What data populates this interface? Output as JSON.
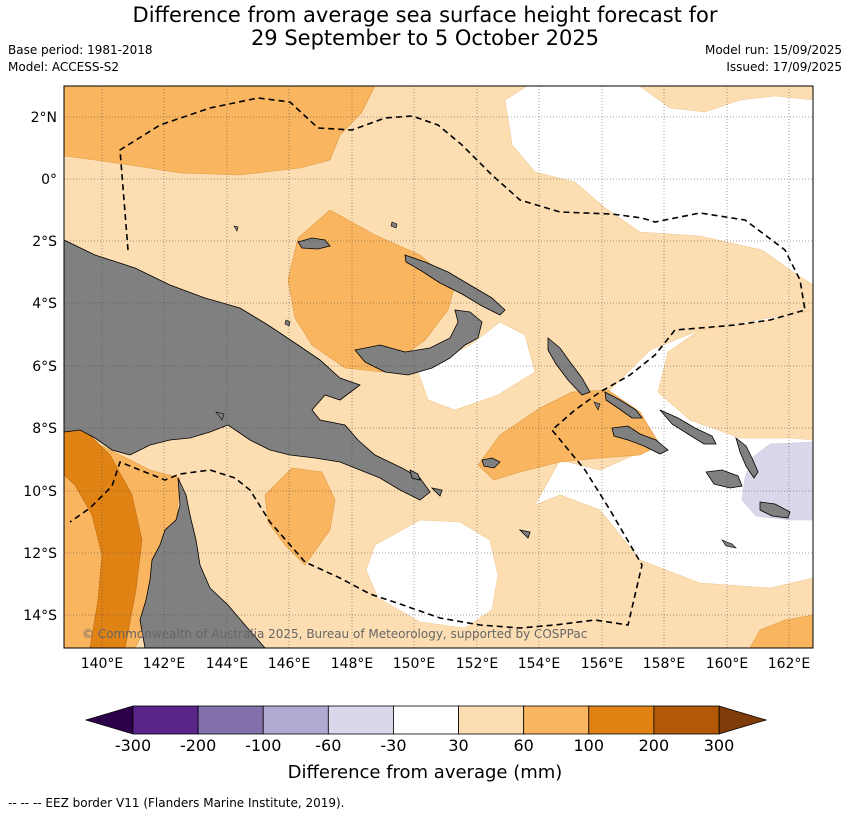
{
  "title": {
    "line1": "Difference from average sea surface height forecast for",
    "line2": "29 September to 5 October 2025"
  },
  "meta": {
    "base_period": "Base period: 1981-2018",
    "model": "Model: ACCESS-S2",
    "model_run": "Model run: 15/09/2025",
    "issued": "Issued: 17/09/2025"
  },
  "map": {
    "lat_ticks": [
      "2°N",
      "0°",
      "2°S",
      "4°S",
      "6°S",
      "8°S",
      "10°S",
      "12°S",
      "14°S"
    ],
    "lon_ticks": [
      "140°E",
      "142°E",
      "144°E",
      "146°E",
      "148°E",
      "150°E",
      "152°E",
      "154°E",
      "156°E",
      "158°E",
      "160°E",
      "162°E"
    ],
    "attribution": "© Commonwealth of Australia 2025, Bureau of Meteorology, supported by COSPPac"
  },
  "colorbar": {
    "ticks": [
      "-300",
      "-200",
      "-100",
      "-60",
      "-30",
      "30",
      "60",
      "100",
      "200",
      "300"
    ],
    "colors": [
      "#5b2489",
      "#8270ad",
      "#b2a9d3",
      "#d8d8ea",
      "#ffffff",
      "#fddeb3",
      "#f9b55f",
      "#e08214",
      "#b35806"
    ],
    "under_color": "#2d004b",
    "over_color": "#7f3b08",
    "label": "Difference from average (mm)"
  },
  "footnote": "--  --  -- EEZ border V11 (Flanders Marine Institute, 2019).",
  "colors": {
    "land": "#808080",
    "c30_60": "#fddeb3",
    "c60_100": "#f9b55f",
    "c100_200": "#e08214",
    "neg60_30": "#d8d8ea"
  }
}
